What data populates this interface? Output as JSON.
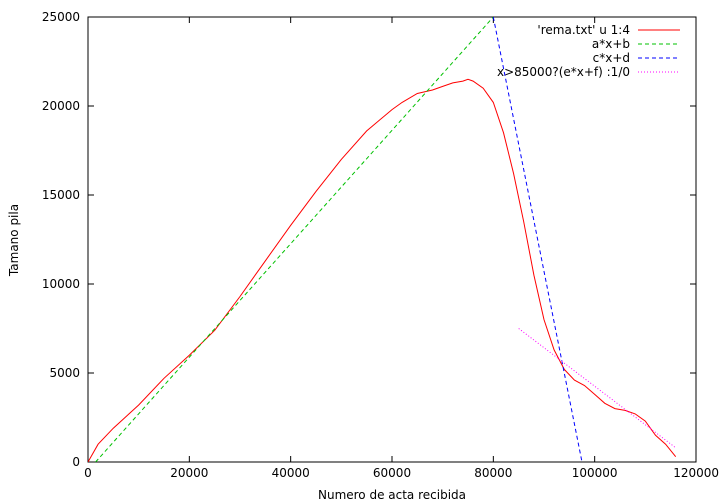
{
  "chart_data": {
    "type": "line",
    "title": "",
    "xlabel": "Numero de acta recibida",
    "ylabel": "Tamano pila",
    "xlim": [
      0,
      120000
    ],
    "ylim": [
      0,
      25000
    ],
    "xticks": [
      0,
      20000,
      40000,
      60000,
      80000,
      100000,
      120000
    ],
    "yticks": [
      0,
      5000,
      10000,
      15000,
      20000,
      25000
    ],
    "grid": false,
    "legend_position": "top-right",
    "series": [
      {
        "name": "'rema.txt' u 1:4",
        "style": "solid",
        "color": "#ff0000",
        "x": [
          0,
          2000,
          5000,
          10000,
          15000,
          20000,
          25000,
          30000,
          35000,
          40000,
          45000,
          50000,
          55000,
          60000,
          62000,
          65000,
          68000,
          70000,
          72000,
          74000,
          75000,
          76000,
          78000,
          80000,
          82000,
          84000,
          86000,
          88000,
          90000,
          92000,
          94000,
          96000,
          98000,
          100000,
          102000,
          104000,
          106000,
          108000,
          110000,
          112000,
          114000,
          116000
        ],
        "y": [
          0,
          1000,
          1900,
          3200,
          4700,
          6000,
          7400,
          9300,
          11300,
          13300,
          15200,
          17000,
          18600,
          19800,
          20200,
          20700,
          20900,
          21100,
          21300,
          21400,
          21500,
          21400,
          21000,
          20200,
          18500,
          16200,
          13500,
          10500,
          8000,
          6300,
          5200,
          4600,
          4300,
          3800,
          3300,
          3000,
          2900,
          2700,
          2300,
          1500,
          1000,
          300
        ]
      },
      {
        "name": "a*x+b",
        "style": "dashed",
        "color": "#00c000",
        "x": [
          1500,
          80000
        ],
        "y": [
          0,
          25000
        ]
      },
      {
        "name": "c*x+d",
        "style": "dashed",
        "color": "#0000ff",
        "x": [
          80000,
          97500
        ],
        "y": [
          25000,
          0
        ]
      },
      {
        "name": "x>85000?(e*x+f) :1/0",
        "style": "dotted",
        "color": "#ff00ff",
        "x": [
          85000,
          116000
        ],
        "y": [
          7500,
          800
        ]
      }
    ]
  }
}
